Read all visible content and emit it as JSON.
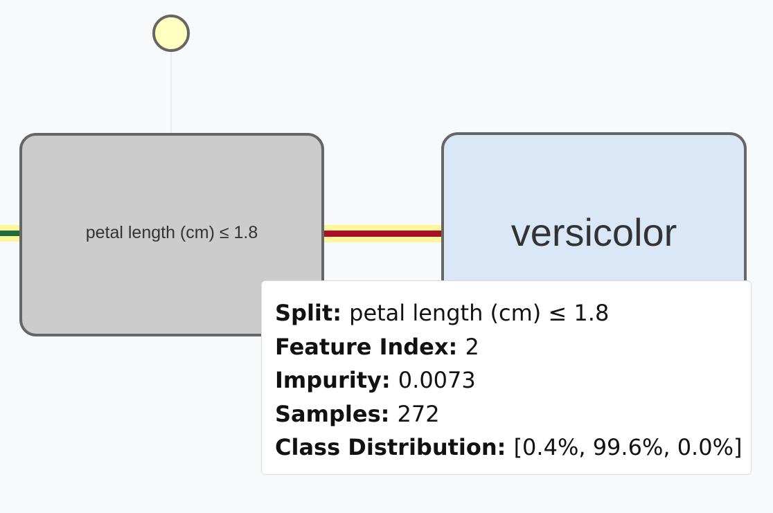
{
  "diagram": {
    "split_node": {
      "label": "petal length (cm) ≤ 1.8",
      "fill": "#cccccc"
    },
    "leaf_node": {
      "label": "versicolor",
      "fill": "#d9e7f6"
    },
    "root_marker": {
      "fill": "#ffffc0"
    },
    "edges": {
      "highlight_color": "#fdf69a",
      "left_edge_color": "#1f6b3a",
      "right_edge_color": "#a8102a",
      "node_border_color": "#666666"
    }
  },
  "tooltip": {
    "rows": [
      {
        "label": "Split:",
        "value": "petal length (cm) ≤ 1.8"
      },
      {
        "label": "Feature Index:",
        "value": "2"
      },
      {
        "label": "Impurity:",
        "value": "0.0073"
      },
      {
        "label": "Samples:",
        "value": "272"
      },
      {
        "label": "Class Distribution:",
        "value": "[0.4%, 99.6%, 0.0%]"
      }
    ]
  }
}
